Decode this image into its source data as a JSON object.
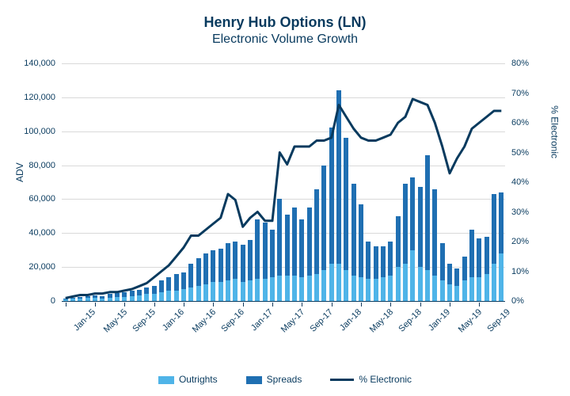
{
  "title": {
    "main": "Henry Hub Options (LN)",
    "sub": "Electronic Volume Growth",
    "color": "#083a5e",
    "main_fontsize": 18,
    "sub_fontsize": 16
  },
  "chart": {
    "type": "bar+line",
    "background_color": "#ffffff",
    "grid_color": "#d9d9d9",
    "axis_color": "#083a5e",
    "y_left": {
      "label": "ADV",
      "min": 0,
      "max": 140000,
      "ticks": [
        0,
        20000,
        40000,
        60000,
        80000,
        100000,
        120000,
        140000
      ],
      "tick_labels": [
        "0",
        "20,000",
        "40,000",
        "60,000",
        "80,000",
        "100,000",
        "120,000",
        "140,000"
      ]
    },
    "y_right": {
      "label": "% Electronic",
      "min": 0,
      "max": 80,
      "ticks": [
        0,
        10,
        20,
        30,
        40,
        50,
        60,
        70,
        80
      ],
      "tick_labels": [
        "0%",
        "10%",
        "20%",
        "30%",
        "40%",
        "50%",
        "60%",
        "70%",
        "80%"
      ]
    },
    "x_tick_labels": [
      "Jan-15",
      "May-15",
      "Sep-15",
      "Jan-16",
      "May-16",
      "Sep-16",
      "Jan-17",
      "May-17",
      "Sep-17",
      "Jan-18",
      "May-18",
      "Sep-18",
      "Jan-19",
      "May-19",
      "Sep-19"
    ],
    "x_tick_every": 4,
    "colors": {
      "outrights": "#4FB4E8",
      "spreads": "#1F6FB2",
      "line": "#083a5e"
    },
    "line_width": 3,
    "categories": [
      "Jan-15",
      "Feb-15",
      "Mar-15",
      "Apr-15",
      "May-15",
      "Jun-15",
      "Jul-15",
      "Aug-15",
      "Sep-15",
      "Oct-15",
      "Nov-15",
      "Dec-15",
      "Jan-16",
      "Feb-16",
      "Mar-16",
      "Apr-16",
      "May-16",
      "Jun-16",
      "Jul-16",
      "Aug-16",
      "Sep-16",
      "Oct-16",
      "Nov-16",
      "Dec-16",
      "Jan-17",
      "Feb-17",
      "Mar-17",
      "Apr-17",
      "May-17",
      "Jun-17",
      "Jul-17",
      "Aug-17",
      "Sep-17",
      "Oct-17",
      "Nov-17",
      "Dec-17",
      "Jan-18",
      "Feb-18",
      "Mar-18",
      "Apr-18",
      "May-18",
      "Jun-18",
      "Jul-18",
      "Aug-18",
      "Sep-18",
      "Oct-18",
      "Nov-18",
      "Dec-18",
      "Jan-19",
      "Feb-19",
      "Mar-19",
      "Apr-19",
      "May-19",
      "Jun-19",
      "Jul-19",
      "Aug-19",
      "Sep-19",
      "Oct-19",
      "Nov-19",
      "Dec-19"
    ],
    "outrights": [
      1000,
      1500,
      1500,
      2000,
      2000,
      1500,
      2000,
      2500,
      2500,
      3000,
      3500,
      4000,
      4000,
      5000,
      6000,
      6000,
      7000,
      8000,
      9000,
      10000,
      11000,
      11000,
      12000,
      13000,
      11000,
      12000,
      13000,
      13000,
      14000,
      15000,
      15000,
      15000,
      14000,
      15000,
      16000,
      18000,
      22000,
      22000,
      18000,
      15000,
      14000,
      13000,
      13000,
      14000,
      15000,
      20000,
      22000,
      30000,
      20000,
      18000,
      15000,
      12000,
      10000,
      9000,
      12000,
      14000,
      14000,
      16000,
      22000,
      28000
    ],
    "spreads": [
      500,
      500,
      1000,
      1000,
      1500,
      1500,
      2000,
      2000,
      2500,
      3000,
      3000,
      4000,
      5000,
      7000,
      8000,
      10000,
      10000,
      14000,
      16000,
      18000,
      19000,
      20000,
      22000,
      22000,
      22000,
      24000,
      35000,
      33000,
      28000,
      45000,
      36000,
      40000,
      34000,
      40000,
      50000,
      62000,
      80000,
      102000,
      78000,
      54000,
      43000,
      22000,
      19000,
      18000,
      20000,
      30000,
      47000,
      43000,
      47000,
      68000,
      51000,
      22000,
      12000,
      10000,
      14000,
      28000,
      23000,
      22000,
      41000,
      36000
    ],
    "pct_electronic": [
      1,
      1.5,
      2,
      2,
      2.5,
      2.5,
      3,
      3,
      3.5,
      4,
      5,
      6,
      8,
      10,
      12,
      15,
      18,
      22,
      22,
      24,
      26,
      28,
      36,
      34,
      25,
      28,
      30,
      27,
      27,
      50,
      46,
      52,
      52,
      52,
      54,
      54,
      55,
      66,
      62,
      58,
      55,
      54,
      54,
      55,
      56,
      60,
      62,
      68,
      67,
      66,
      60,
      52,
      43,
      48,
      52,
      58,
      60,
      62,
      64,
      64
    ]
  },
  "legend": {
    "items": [
      {
        "label": "Outrights",
        "type": "swatch",
        "color": "#4FB4E8"
      },
      {
        "label": "Spreads",
        "type": "swatch",
        "color": "#1F6FB2"
      },
      {
        "label": "% Electronic",
        "type": "line",
        "color": "#083a5e"
      }
    ]
  }
}
